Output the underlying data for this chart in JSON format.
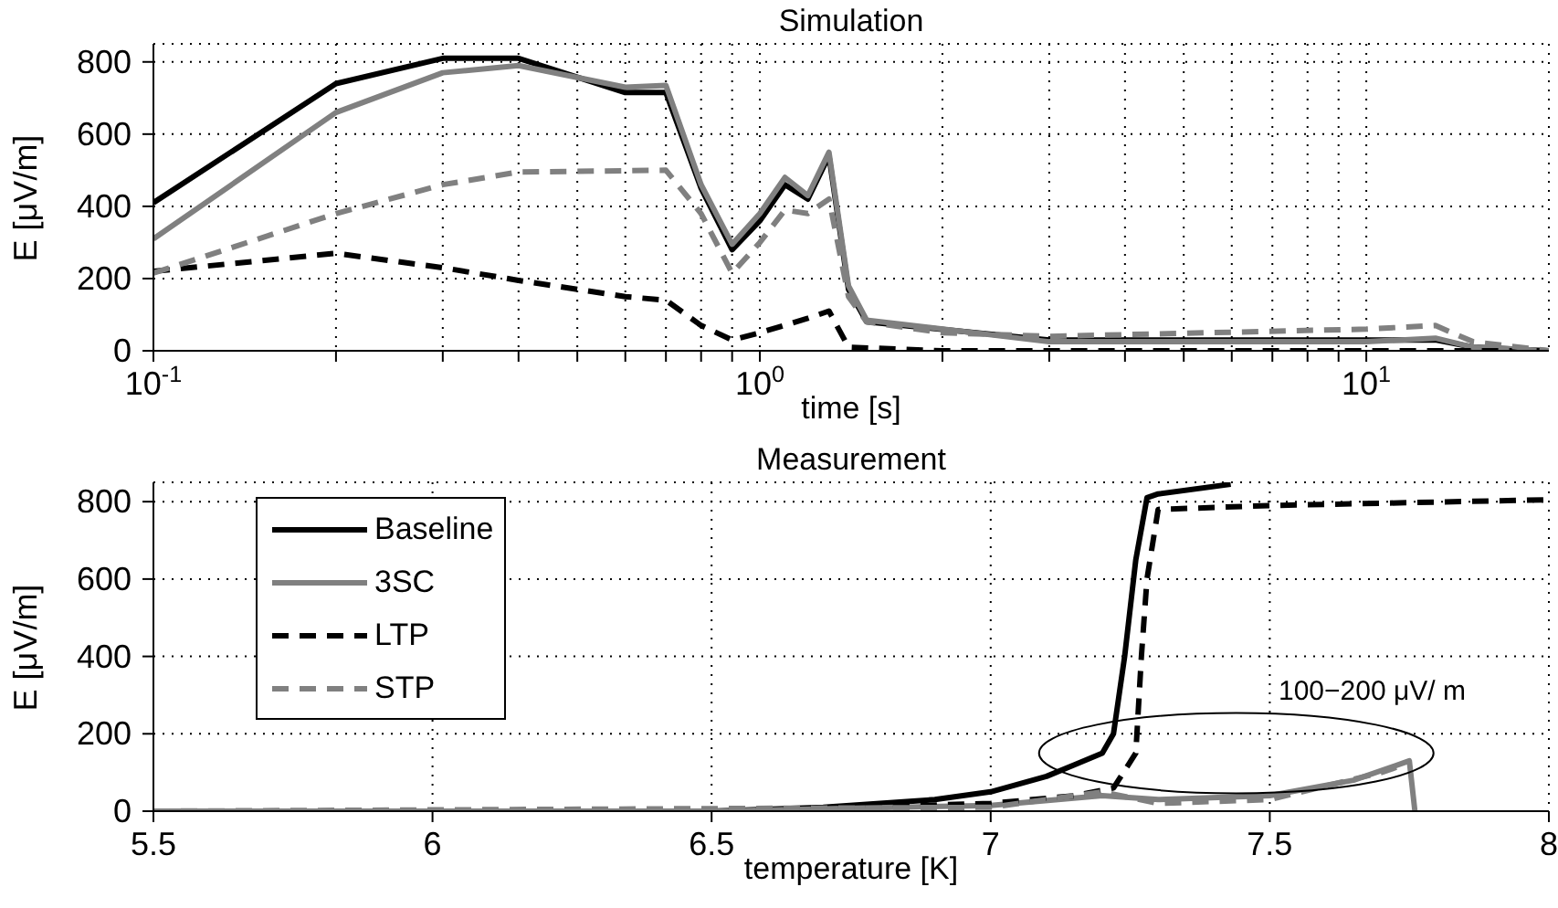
{
  "chart_data": [
    {
      "type": "line",
      "title": "Simulation",
      "xlabel": "time [s]",
      "ylabel": "E [μV/m]",
      "log": "x",
      "grid": true,
      "legend": false,
      "xlim": [
        0.1,
        20
      ],
      "xticks": [
        {
          "value": 0.1,
          "label": "10$^{-1}$"
        },
        {
          "value": 0.2,
          "label": null
        },
        {
          "value": 0.3,
          "label": null
        },
        {
          "value": 0.4,
          "label": null
        },
        {
          "value": 0.5,
          "label": null
        },
        {
          "value": 0.6,
          "label": null
        },
        {
          "value": 0.7,
          "label": null
        },
        {
          "value": 0.8,
          "label": null
        },
        {
          "value": 0.9,
          "label": null
        },
        {
          "value": 1,
          "label": "10$^{0}$"
        },
        {
          "value": 2,
          "label": null
        },
        {
          "value": 3,
          "label": null
        },
        {
          "value": 4,
          "label": null
        },
        {
          "value": 5,
          "label": null
        },
        {
          "value": 6,
          "label": null
        },
        {
          "value": 7,
          "label": null
        },
        {
          "value": 8,
          "label": null
        },
        {
          "value": 9,
          "label": null
        },
        {
          "value": 10,
          "label": "10$^{1}$"
        }
      ],
      "ylim": [
        0,
        850
      ],
      "yticks": [
        0,
        200,
        400,
        600,
        800
      ],
      "series": [
        {
          "color": "#000000",
          "line_style": "solid",
          "x": [
            0.1,
            0.2,
            0.3,
            0.4,
            0.6,
            0.7,
            0.8,
            0.9,
            1.0,
            1.1,
            1.2,
            1.3,
            1.4,
            1.5,
            3,
            10,
            13,
            15,
            20
          ],
          "values": [
            410,
            740,
            810,
            810,
            715,
            715,
            450,
            280,
            360,
            460,
            420,
            540,
            170,
            80,
            30,
            30,
            30,
            10,
            0
          ]
        },
        {
          "color": "#808080",
          "line_style": "solid",
          "x": [
            0.1,
            0.2,
            0.3,
            0.4,
            0.6,
            0.7,
            0.8,
            0.9,
            1.0,
            1.1,
            1.2,
            1.3,
            1.4,
            1.5,
            3,
            10,
            13,
            15,
            20
          ],
          "values": [
            310,
            660,
            770,
            790,
            730,
            735,
            460,
            295,
            380,
            480,
            430,
            550,
            180,
            85,
            25,
            25,
            35,
            10,
            0
          ]
        },
        {
          "color": "#000000",
          "line_style": "dashed",
          "x": [
            0.1,
            0.2,
            0.3,
            0.4,
            0.6,
            0.7,
            0.8,
            0.9,
            1.0,
            1.2,
            1.3,
            1.4,
            2,
            20
          ],
          "values": [
            220,
            270,
            230,
            195,
            150,
            140,
            70,
            30,
            50,
            90,
            110,
            10,
            0,
            0
          ]
        },
        {
          "color": "#808080",
          "line_style": "dashed",
          "x": [
            0.1,
            0.2,
            0.3,
            0.4,
            0.7,
            0.8,
            0.9,
            1.0,
            1.1,
            1.2,
            1.3,
            1.4,
            1.5,
            2,
            3,
            10,
            13,
            15,
            20
          ],
          "values": [
            215,
            380,
            460,
            495,
            500,
            380,
            215,
            300,
            390,
            380,
            420,
            150,
            80,
            50,
            40,
            60,
            70,
            25,
            0
          ]
        }
      ]
    },
    {
      "type": "line",
      "title": "Measurement",
      "xlabel": "temperature [K]",
      "ylabel": "E [μV/m]",
      "grid": true,
      "legend": "top left",
      "xlim": [
        5.5,
        8
      ],
      "xticks": [
        5.5,
        6,
        6.5,
        7,
        7.5,
        8
      ],
      "ylim": [
        0,
        850
      ],
      "yticks": [
        0,
        200,
        400,
        600,
        800
      ],
      "annotations": [
        "100−200 μV/ m"
      ],
      "series": [
        {
          "name": "Baseline",
          "color": "#000000",
          "line_style": "solid",
          "x": [
            5.5,
            6.5,
            6.7,
            6.9,
            7.0,
            7.1,
            7.15,
            7.2,
            7.22,
            7.24,
            7.26,
            7.28,
            7.3,
            7.43
          ],
          "values": [
            0,
            0,
            10,
            30,
            50,
            90,
            120,
            150,
            200,
            400,
            650,
            810,
            820,
            845
          ]
        },
        {
          "name": "3SC",
          "color": "#808080",
          "line_style": "solid",
          "x": [
            5.5,
            6.5,
            7.0,
            7.2,
            7.3,
            7.5,
            7.65,
            7.75,
            7.76
          ],
          "values": [
            0,
            0,
            15,
            40,
            30,
            40,
            80,
            130,
            0
          ]
        },
        {
          "name": "LTP",
          "color": "#000000",
          "line_style": "dashed",
          "x": [
            5.5,
            6.5,
            7.0,
            7.15,
            7.22,
            7.26,
            7.27,
            7.28,
            7.3,
            7.5,
            8
          ],
          "values": [
            0,
            0,
            20,
            40,
            60,
            150,
            400,
            600,
            780,
            790,
            805
          ]
        },
        {
          "name": "STP",
          "color": "#808080",
          "line_style": "dashed",
          "x": [
            5.5,
            7.0,
            7.2,
            7.3,
            7.5,
            7.7,
            7.74
          ],
          "values": [
            0,
            10,
            50,
            20,
            30,
            100,
            120
          ]
        }
      ]
    }
  ]
}
